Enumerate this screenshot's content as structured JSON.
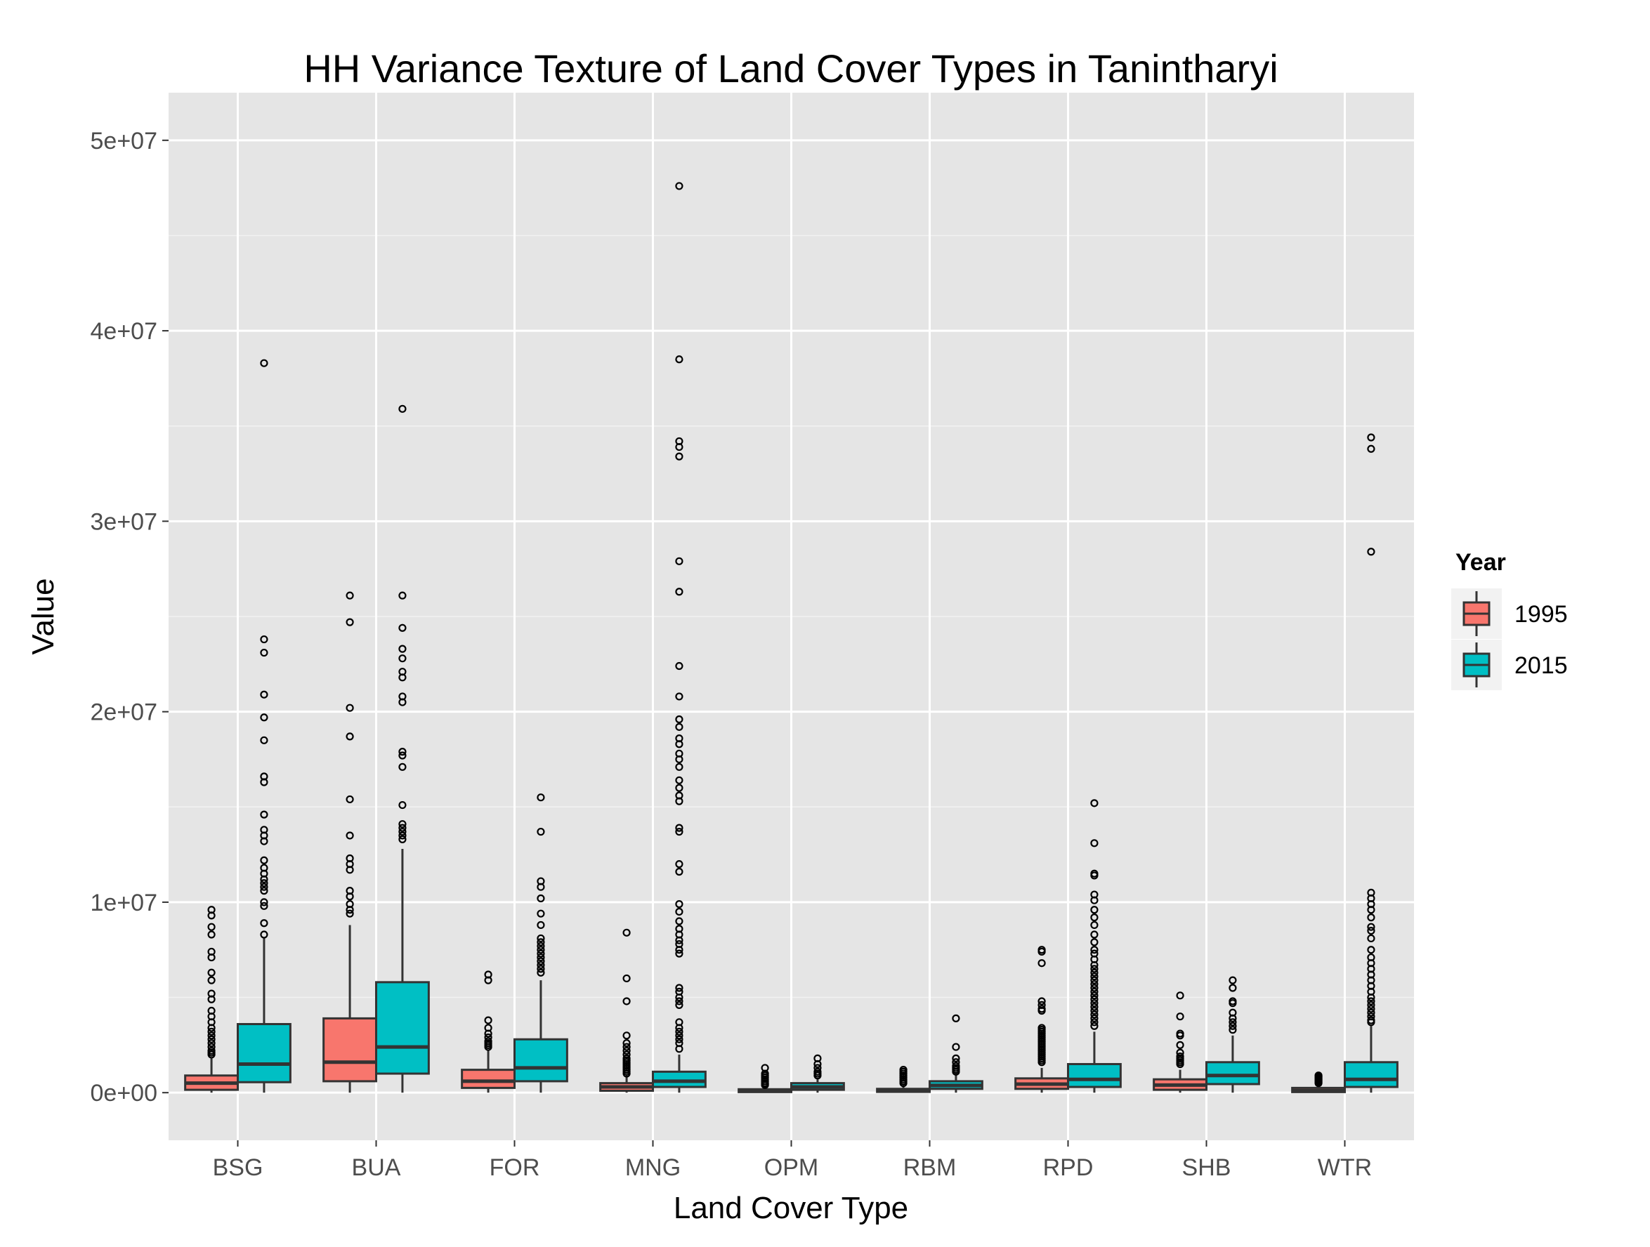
{
  "chart_data": {
    "type": "box",
    "title": "HH Variance Texture of Land Cover Types in Tanintharyi",
    "xlabel": "Land Cover Type",
    "ylabel": "Value",
    "categories": [
      "BSG",
      "BUA",
      "FOR",
      "MNG",
      "OPM",
      "RBM",
      "RPD",
      "SHB",
      "WTR"
    ],
    "ylim": [
      -2500000,
      52500000
    ],
    "yticks": [
      0,
      10000000,
      20000000,
      30000000,
      40000000,
      50000000
    ],
    "ytick_labels": [
      "0e+00",
      "1e+07",
      "2e+07",
      "3e+07",
      "4e+07",
      "5e+07"
    ],
    "grid": true,
    "legend": {
      "title": "Year",
      "placement": "right"
    },
    "series": [
      {
        "name": "1995",
        "color": "#F8766D",
        "boxes": [
          {
            "min": 0,
            "q1": 150000,
            "median": 500000,
            "q3": 900000,
            "max": 1800000,
            "outliers": [
              9600000,
              9300000,
              8700000,
              8300000,
              7400000,
              7100000,
              6300000,
              5900000,
              5200000,
              4900000,
              4300000,
              4000000,
              3700000,
              3400000,
              3200000,
              3000000,
              2800000,
              2600000,
              2400000,
              2200000,
              2100000,
              2000000
            ]
          },
          {
            "min": 0,
            "q1": 600000,
            "median": 1600000,
            "q3": 3900000,
            "max": 8800000,
            "outliers": [
              26100000,
              24700000,
              20200000,
              18700000,
              15400000,
              13500000,
              12300000,
              12000000,
              11700000,
              10600000,
              10300000,
              9900000,
              9600000,
              9400000
            ]
          },
          {
            "min": 0,
            "q1": 250000,
            "median": 600000,
            "q3": 1200000,
            "max": 2200000,
            "outliers": [
              6200000,
              5900000,
              3800000,
              3400000,
              3100000,
              2900000,
              2700000,
              2600000,
              2500000,
              2400000
            ]
          },
          {
            "min": 0,
            "q1": 100000,
            "median": 300000,
            "q3": 500000,
            "max": 900000,
            "outliers": [
              8400000,
              6000000,
              4800000,
              3000000,
              2600000,
              2400000,
              2200000,
              2000000,
              1800000,
              1700000,
              1600000,
              1500000,
              1400000,
              1300000,
              1200000,
              1100000,
              1000000
            ]
          },
          {
            "min": 0,
            "q1": 30000,
            "median": 80000,
            "q3": 180000,
            "max": 350000,
            "outliers": [
              1300000,
              1000000,
              900000,
              800000,
              700000,
              600000,
              500000,
              450000,
              400000
            ]
          },
          {
            "min": 0,
            "q1": 40000,
            "median": 100000,
            "q3": 200000,
            "max": 400000,
            "outliers": [
              1200000,
              1100000,
              1000000,
              900000,
              800000,
              700000,
              600000,
              500000
            ]
          },
          {
            "min": 0,
            "q1": 200000,
            "median": 450000,
            "q3": 750000,
            "max": 1300000,
            "outliers": [
              7500000,
              7400000,
              6800000,
              4800000,
              4600000,
              4400000,
              4300000,
              3400000,
              3300000,
              3200000,
              3100000,
              3000000,
              2900000,
              2800000,
              2700000,
              2600000,
              2500000,
              2400000,
              2300000,
              2200000,
              2100000,
              2000000,
              1900000,
              1800000,
              1700000,
              1600000
            ]
          },
          {
            "min": 0,
            "q1": 150000,
            "median": 400000,
            "q3": 700000,
            "max": 1200000,
            "outliers": [
              5100000,
              4000000,
              3100000,
              3000000,
              2500000,
              2100000,
              1900000,
              1800000,
              1700000,
              1600000,
              1500000
            ]
          },
          {
            "min": 0,
            "q1": 30000,
            "median": 100000,
            "q3": 250000,
            "max": 450000,
            "outliers": [
              900000,
              850000,
              800000,
              750000,
              700000,
              650000,
              600000,
              550000,
              500000
            ]
          }
        ]
      },
      {
        "name": "2015",
        "color": "#00BFC4",
        "boxes": [
          {
            "min": 0,
            "q1": 550000,
            "median": 1500000,
            "q3": 3600000,
            "max": 8100000,
            "outliers": [
              38300000,
              23800000,
              23100000,
              20900000,
              19700000,
              18500000,
              16600000,
              16300000,
              14600000,
              13800000,
              13500000,
              13200000,
              12200000,
              11800000,
              11500000,
              11200000,
              11000000,
              10800000,
              10600000,
              10000000,
              9800000,
              8900000,
              8300000
            ]
          },
          {
            "min": 0,
            "q1": 1000000,
            "median": 2400000,
            "q3": 5800000,
            "max": 12800000,
            "outliers": [
              35900000,
              26100000,
              24400000,
              23300000,
              22800000,
              22100000,
              21800000,
              20800000,
              20500000,
              17900000,
              17700000,
              17100000,
              15100000,
              14100000,
              13900000,
              13700000,
              13500000,
              13300000
            ]
          },
          {
            "min": 0,
            "q1": 600000,
            "median": 1300000,
            "q3": 2800000,
            "max": 5900000,
            "outliers": [
              15500000,
              13700000,
              11100000,
              10800000,
              10200000,
              9400000,
              8800000,
              8100000,
              7900000,
              7700000,
              7500000,
              7300000,
              7100000,
              6900000,
              6700000,
              6500000,
              6300000
            ]
          },
          {
            "min": 0,
            "q1": 300000,
            "median": 600000,
            "q3": 1100000,
            "max": 2000000,
            "outliers": [
              47600000,
              38500000,
              34200000,
              33900000,
              33400000,
              27900000,
              26300000,
              22400000,
              20800000,
              19600000,
              19200000,
              18600000,
              18300000,
              17800000,
              17500000,
              17100000,
              16400000,
              16000000,
              15600000,
              15300000,
              13900000,
              13700000,
              12000000,
              11600000,
              9900000,
              9500000,
              9000000,
              8600000,
              8300000,
              8000000,
              7800000,
              7500000,
              7300000,
              5500000,
              5300000,
              5000000,
              4800000,
              4600000,
              3700000,
              3400000,
              3200000,
              3000000,
              2800000,
              2600000,
              2300000
            ]
          },
          {
            "min": 0,
            "q1": 150000,
            "median": 300000,
            "q3": 500000,
            "max": 700000,
            "outliers": [
              1800000,
              1500000,
              1300000,
              1100000,
              1000000,
              900000
            ]
          },
          {
            "min": 0,
            "q1": 200000,
            "median": 380000,
            "q3": 600000,
            "max": 1000000,
            "outliers": [
              3900000,
              2400000,
              1800000,
              1600000,
              1400000,
              1300000,
              1200000,
              1100000
            ]
          },
          {
            "min": 0,
            "q1": 300000,
            "median": 700000,
            "q3": 1500000,
            "max": 3200000,
            "outliers": [
              15200000,
              13100000,
              11500000,
              11400000,
              10400000,
              10100000,
              9600000,
              9200000,
              8800000,
              8300000,
              7900000,
              7500000,
              7300000,
              7000000,
              6700000,
              6500000,
              6300000,
              6100000,
              5900000,
              5700000,
              5500000,
              5300000,
              5100000,
              4900000,
              4700000,
              4500000,
              4300000,
              4100000,
              3900000,
              3700000,
              3500000
            ]
          },
          {
            "min": 0,
            "q1": 450000,
            "median": 900000,
            "q3": 1600000,
            "max": 3000000,
            "outliers": [
              5900000,
              5500000,
              4800000,
              4700000,
              4200000,
              3900000,
              3700000,
              3500000,
              3300000
            ]
          },
          {
            "min": 0,
            "q1": 300000,
            "median": 700000,
            "q3": 1600000,
            "max": 3500000,
            "outliers": [
              34400000,
              33800000,
              28400000,
              10500000,
              10200000,
              9900000,
              9600000,
              9200000,
              8700000,
              8500000,
              8100000,
              7500000,
              7100000,
              6800000,
              6500000,
              6200000,
              5900000,
              5600000,
              5300000,
              5000000,
              4800000,
              4600000,
              4400000,
              4200000,
              4000000,
              3800000,
              3700000
            ]
          }
        ]
      }
    ]
  }
}
